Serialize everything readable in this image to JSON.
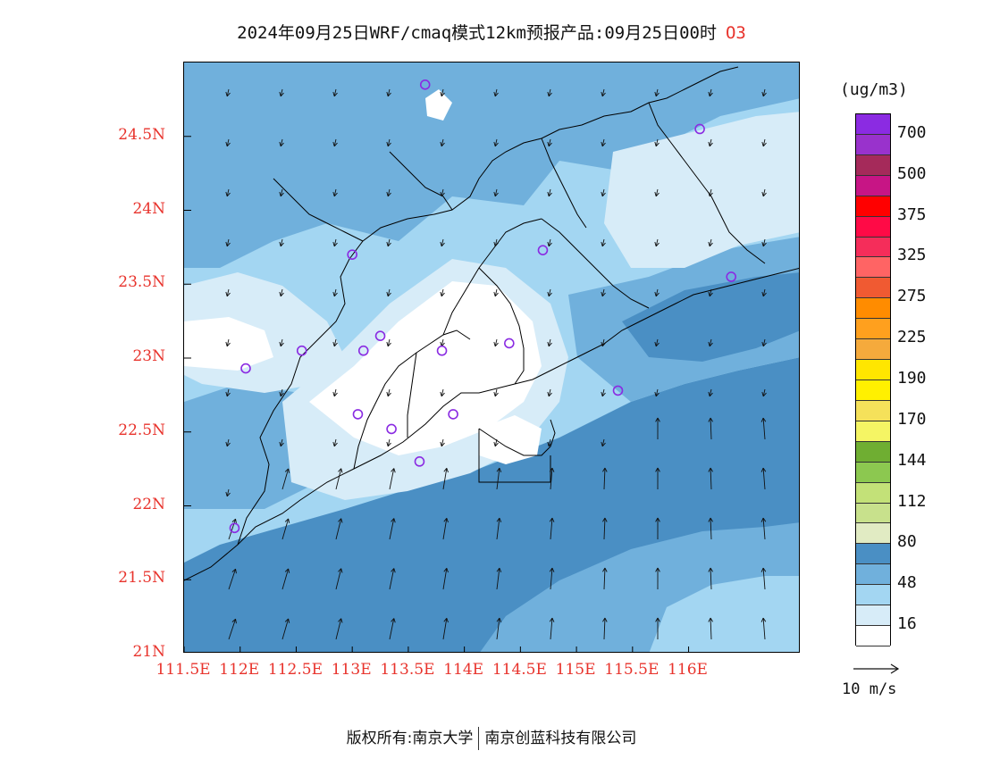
{
  "title": {
    "main": "2024年09月25日WRF/cmaq模式12km预报产品:09月25日00时",
    "variable": "O3"
  },
  "map": {
    "lat_ticks": [
      "24.5N",
      "24N",
      "23.5N",
      "23N",
      "22.5N",
      "22N",
      "21.5N",
      "21N"
    ],
    "lon_ticks": [
      "111.5E",
      "112E",
      "112.5E",
      "113E",
      "113.5E",
      "114E",
      "114.5E",
      "115E",
      "115.5E",
      "116E"
    ],
    "lat_range": [
      21.0,
      25.0
    ],
    "lon_range": [
      111.5,
      117.0
    ],
    "stations": [
      {
        "lon": 113.65,
        "lat": 24.85
      },
      {
        "lon": 116.1,
        "lat": 24.55
      },
      {
        "lon": 113.0,
        "lat": 23.7
      },
      {
        "lon": 114.7,
        "lat": 23.73
      },
      {
        "lon": 116.38,
        "lat": 23.55
      },
      {
        "lon": 112.55,
        "lat": 23.05
      },
      {
        "lon": 113.1,
        "lat": 23.05
      },
      {
        "lon": 113.25,
        "lat": 23.15
      },
      {
        "lon": 113.8,
        "lat": 23.05
      },
      {
        "lon": 114.4,
        "lat": 23.1
      },
      {
        "lon": 112.05,
        "lat": 22.93
      },
      {
        "lon": 113.05,
        "lat": 22.62
      },
      {
        "lon": 113.35,
        "lat": 22.52
      },
      {
        "lon": 113.9,
        "lat": 22.62
      },
      {
        "lon": 115.37,
        "lat": 22.78
      },
      {
        "lon": 113.6,
        "lat": 22.3
      },
      {
        "lon": 111.95,
        "lat": 21.85
      }
    ],
    "colors": {
      "land_outline": "#000000",
      "station": "#8a2be2"
    }
  },
  "colorbar": {
    "unit": "(ug/m3)",
    "segments": [
      {
        "color": "#8b2be2"
      },
      {
        "color": "#9932cc"
      },
      {
        "color": "#a52a5a"
      },
      {
        "color": "#c71585"
      },
      {
        "color": "#ff0000"
      },
      {
        "color": "#ff0a46"
      },
      {
        "color": "#f52d5a"
      },
      {
        "color": "#ff6464"
      },
      {
        "color": "#f05a32"
      },
      {
        "color": "#ff8c00"
      },
      {
        "color": "#ffa01e"
      },
      {
        "color": "#f5aa3c"
      },
      {
        "color": "#ffe600"
      },
      {
        "color": "#fff000"
      },
      {
        "color": "#f5e15a"
      },
      {
        "color": "#f5f564"
      },
      {
        "color": "#6fae32"
      },
      {
        "color": "#8cc850"
      },
      {
        "color": "#c3e178"
      },
      {
        "color": "#c8e18c"
      },
      {
        "color": "#e1ebc3"
      },
      {
        "color": "#4a8fc4"
      },
      {
        "color": "#70b0dc"
      },
      {
        "color": "#a3d6f2"
      },
      {
        "color": "#d7ecf8"
      },
      {
        "color": "#ffffff"
      }
    ],
    "labels": [
      "700",
      "500",
      "375",
      "325",
      "275",
      "225",
      "190",
      "170",
      "144",
      "112",
      "80",
      "48",
      "16"
    ]
  },
  "wind_reference": {
    "label": "10 m/s"
  },
  "footer": {
    "left": "版权所有:南京大学",
    "right": "南京创蓝科技有限公司"
  }
}
